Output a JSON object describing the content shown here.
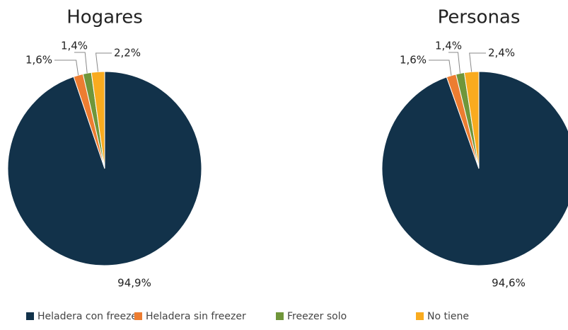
{
  "chart_data": [
    {
      "type": "pie",
      "title": "Hogares",
      "categories": [
        "Heladera con freezer",
        "Heladera sin freezer",
        "Freezer solo",
        "No tiene"
      ],
      "values": [
        94.9,
        1.6,
        1.4,
        2.2
      ],
      "value_labels": [
        "94,9%",
        "1,6%",
        "1,4%",
        "2,2%"
      ],
      "colors": [
        "#12324a",
        "#ed7d31",
        "#70963a",
        "#f9ab1f"
      ]
    },
    {
      "type": "pie",
      "title": "Personas",
      "categories": [
        "Heladera con freezer",
        "Heladera sin freezer",
        "Freezer solo",
        "No tiene"
      ],
      "values": [
        94.6,
        1.6,
        1.4,
        2.4
      ],
      "value_labels": [
        "94,6%",
        "1,6%",
        "1,4%",
        "2,4%"
      ],
      "colors": [
        "#12324a",
        "#ed7d31",
        "#70963a",
        "#f9ab1f"
      ]
    }
  ]
}
